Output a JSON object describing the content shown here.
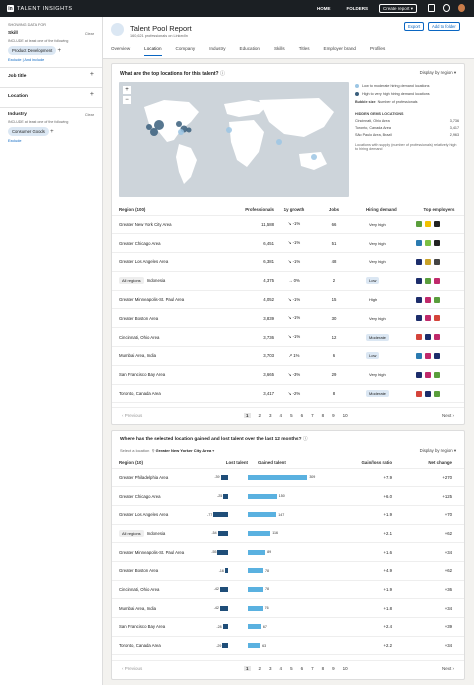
{
  "topbar": {
    "brand": "TALENT INSIGHTS",
    "logo": "in",
    "nav": [
      "HOME",
      "FOLDERS"
    ],
    "create": "Create report"
  },
  "sidebar": {
    "showing": "SHOWING DATA FOR",
    "skill": {
      "name": "Skill",
      "clear": "Clear",
      "sub": "INCLUDE at least one of the following",
      "pill": "Product Development",
      "links": [
        "Exclude",
        "And include"
      ]
    },
    "job_title": {
      "name": "Job title"
    },
    "location": {
      "name": "Location"
    },
    "industry": {
      "name": "Industry",
      "clear": "Clear",
      "sub": "INCLUDE at least one of the following",
      "pill": "Consumer Goods",
      "link": "Exclude"
    }
  },
  "header": {
    "title": "Talent Pool Report",
    "subtitle": "160,621 professionals on LinkedIn",
    "export": "Export",
    "add_folder": "Add to folder",
    "tabs": [
      "Overview",
      "Location",
      "Company",
      "Industry",
      "Education",
      "Skills",
      "Titles",
      "Employer brand",
      "Profiles"
    ],
    "active_tab": "Location"
  },
  "locations_card": {
    "title": "What are the top locations for this talent?",
    "dropdown": "Display by region",
    "legend": {
      "low": "Low to moderate hiring demand locations",
      "high": "High to very high hiring demand locations",
      "bubble": "Bubble size",
      "bubble_val": "Number of professionals",
      "hidden_title": "HIDDEN GEMS LOCATIONS",
      "gems": [
        {
          "name": "Cincinnati, Ohio Area",
          "value": "3,736"
        },
        {
          "name": "Toronto, Canada Area",
          "value": "3,417"
        },
        {
          "name": "São Paulo Area, Brazil",
          "value": "2,963"
        }
      ],
      "note": "Locations with supply (number of professionals) relatively high to hiring demand",
      "low_color": "#9cc6e4",
      "high_color": "#3a5f7d"
    },
    "columns": [
      "Region (100)",
      "Professionals",
      "1y growth",
      "Jobs",
      "Hiring demand",
      "Top employers"
    ],
    "rows": [
      {
        "region": "Greater New York City Area",
        "pros": "11,588",
        "growth": "-1%",
        "jobs": "66",
        "demand": "Very high",
        "badge": false
      },
      {
        "region": "Greater Chicago Area",
        "pros": "6,451",
        "growth": "-1%",
        "jobs": "51",
        "demand": "Very high",
        "badge": false
      },
      {
        "region": "Greater Los Angeles Area",
        "pros": "6,381",
        "growth": "-1%",
        "jobs": "48",
        "demand": "Very high",
        "badge": false
      },
      {
        "region": "Indonesia",
        "pros": "4,375",
        "growth": "0%",
        "jobs": "2",
        "demand": "Low",
        "badge": true,
        "tag": "All regions"
      },
      {
        "region": "Greater Minneapolis-St. Paul Area",
        "pros": "4,052",
        "growth": "-1%",
        "jobs": "15",
        "demand": "High",
        "badge": false
      },
      {
        "region": "Greater Boston Area",
        "pros": "3,839",
        "growth": "-1%",
        "jobs": "30",
        "demand": "Very high",
        "badge": false
      },
      {
        "region": "Cincinnati, Ohio Area",
        "pros": "3,736",
        "growth": "-1%",
        "jobs": "12",
        "demand": "Moderate",
        "badge": true
      },
      {
        "region": "Mumbai Area, India",
        "pros": "3,703",
        "growth": "1%",
        "jobs": "6",
        "demand": "Low",
        "badge": true
      },
      {
        "region": "San Francisco Bay Area",
        "pros": "3,665",
        "growth": "-3%",
        "jobs": "29",
        "demand": "Very high",
        "badge": false
      },
      {
        "region": "Toronto, Canada Area",
        "pros": "3,417",
        "growth": "-2%",
        "jobs": "8",
        "demand": "Moderate",
        "badge": true
      }
    ],
    "pager": {
      "prev": "Previous",
      "next": "Next",
      "pages": [
        "1",
        "2",
        "3",
        "4",
        "5",
        "6",
        "7",
        "8",
        "9",
        "10"
      ]
    }
  },
  "gain_card": {
    "title": "Where has the selected location gained and lost talent over the last 12 months?",
    "select_label": "Select a location",
    "selected": "Greater New Yorker City Area",
    "dropdown": "Display by region",
    "columns": [
      "Region (10)",
      "Lost talent",
      "Gained talent",
      "Gain/loss ratio",
      "Net change"
    ],
    "rows": [
      {
        "region": "Greater Philadelphia Area",
        "lost": -39,
        "gained": 309,
        "ratio": "+7.9",
        "net": "+270"
      },
      {
        "region": "Greater Chicago Area",
        "lost": -25,
        "gained": 150,
        "ratio": "+6.0",
        "net": "+125"
      },
      {
        "region": "Greater Los Angeles Area",
        "lost": -77,
        "gained": 147,
        "ratio": "+1.9",
        "net": "+70"
      },
      {
        "region": "Indonesia",
        "lost": -54,
        "gained": 116,
        "ratio": "+2.1",
        "net": "+62",
        "tag": "All regions"
      },
      {
        "region": "Greater Minneapolis-St. Paul Area",
        "lost": -55,
        "gained": 89,
        "ratio": "+1.6",
        "net": "+34"
      },
      {
        "region": "Greater Boston Area",
        "lost": -16,
        "gained": 78,
        "ratio": "+4.9",
        "net": "+62"
      },
      {
        "region": "Cincinnati, Ohio Area",
        "lost": -42,
        "gained": 78,
        "ratio": "+1.9",
        "net": "+36"
      },
      {
        "region": "Mumbai Area, India",
        "lost": -42,
        "gained": 76,
        "ratio": "+1.8",
        "net": "+34"
      },
      {
        "region": "San Francisco Bay Area",
        "lost": -28,
        "gained": 67,
        "ratio": "+2.4",
        "net": "+39"
      },
      {
        "region": "Toronto, Canada Area",
        "lost": -29,
        "gained": 63,
        "ratio": "+2.2",
        "net": "+34"
      }
    ],
    "lost_color": "#1f4e79",
    "gained_color": "#5ab1e0",
    "pager": {
      "prev": "Previous",
      "next": "Next",
      "pages": [
        "1",
        "2",
        "3",
        "4",
        "5",
        "6",
        "7",
        "8",
        "9",
        "10"
      ]
    }
  }
}
